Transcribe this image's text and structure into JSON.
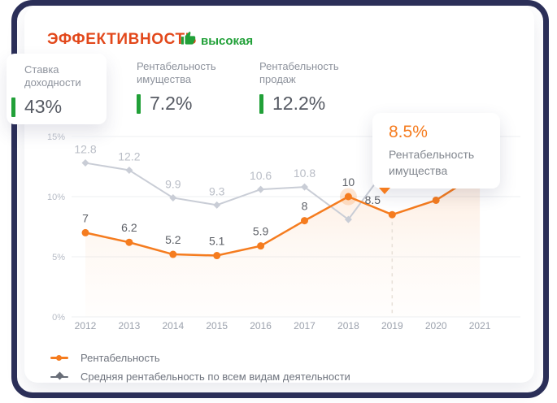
{
  "header": {
    "title": "ЭФФЕКТИВНОСТЬ",
    "badge": "высокая"
  },
  "stats": [
    {
      "label": "Ставка доходности",
      "value": "43%"
    },
    {
      "label": "Рентабельность имущества",
      "value": "7.2%"
    },
    {
      "label": "Рентабельность продаж",
      "value": "12.2%"
    }
  ],
  "tooltip": {
    "value": "8.5%",
    "label": "Рентабельность имущества"
  },
  "colors": {
    "frame_navy": "#2c3059",
    "title_orange": "#e2481b",
    "green": "#21a038",
    "orange_line": "#f57c1f",
    "gray_line": "#c9cdd6",
    "grid": "#edeff2",
    "tick_label": "#b7bcc6",
    "x_label": "#9ca2ad"
  },
  "chart_data": {
    "type": "line",
    "x": [
      2012,
      2013,
      2014,
      2015,
      2016,
      2017,
      2018,
      2019,
      2020,
      2021
    ],
    "series": [
      {
        "name": "Рентабельность",
        "color": "#f57c1f",
        "marker": "circle",
        "area_fill": true,
        "label_color": "#5d6067",
        "values": [
          7,
          6.2,
          5.2,
          5.1,
          5.9,
          8,
          10,
          8.5,
          9.7,
          12
        ],
        "labels": [
          "7",
          "6.2",
          "5.2",
          "5.1",
          "5.9",
          "8",
          "10",
          "8.5",
          "",
          ""
        ]
      },
      {
        "name": "Средняя рентабельность по всем видам деятельности",
        "color": "#c9cdd6",
        "marker": "diamond",
        "area_fill": false,
        "label_color": "#b9bdc6",
        "values": [
          12.8,
          12.2,
          9.9,
          9.3,
          10.6,
          10.8,
          8.1,
          13,
          null,
          null
        ],
        "labels": [
          "12.8",
          "12.2",
          "9.9",
          "9.3",
          "10.6",
          "10.8",
          "",
          "",
          "",
          ""
        ]
      }
    ],
    "y_ticks": [
      {
        "label": "0%",
        "value": 0
      },
      {
        "label": "5%",
        "value": 5
      },
      {
        "label": "10%",
        "value": 10
      },
      {
        "label": "15%",
        "value": 15
      }
    ],
    "ylim": [
      0,
      15
    ],
    "grid": true,
    "legend_position": "bottom",
    "highlight_index": 6,
    "tooltip_index": 7
  }
}
